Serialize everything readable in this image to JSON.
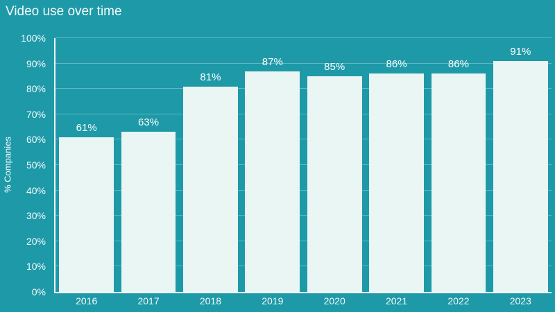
{
  "chart_data": {
    "type": "bar",
    "title": "Video use over time",
    "categories": [
      "2016",
      "2017",
      "2018",
      "2019",
      "2020",
      "2021",
      "2022",
      "2023"
    ],
    "values": [
      61,
      63,
      81,
      87,
      85,
      86,
      86,
      91
    ],
    "value_labels": [
      "61%",
      "63%",
      "81%",
      "87%",
      "85%",
      "86%",
      "86%",
      "91%"
    ],
    "xlabel": "",
    "ylabel": "% Companies",
    "ylim": [
      0,
      100
    ],
    "ytick_step": 10,
    "ytick_labels": [
      "0%",
      "10%",
      "20%",
      "30%",
      "40%",
      "50%",
      "60%",
      "70%",
      "80%",
      "90%",
      "100%"
    ],
    "grid": true,
    "legend": false,
    "colors": {
      "background": "#1e99a8",
      "bar": "#eaf6f4",
      "gridline": "rgba(255,255,255,0.30)",
      "axis": "#f2fafa",
      "text": "#ffffff"
    }
  }
}
